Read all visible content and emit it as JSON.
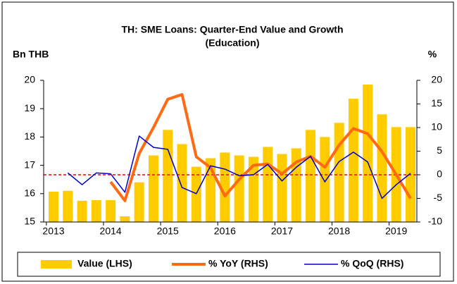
{
  "chart_data": {
    "type": "bar_line",
    "title": [
      "TH: SME Loans: Quarter-End Value and Growth",
      "(Education)"
    ],
    "y_label": "Bn THB",
    "y2_label": "%",
    "categories": [
      "2013",
      null,
      null,
      null,
      "2014",
      null,
      null,
      null,
      "2015",
      null,
      null,
      null,
      "2016",
      null,
      null,
      null,
      "2017",
      null,
      null,
      null,
      "2018",
      null,
      null,
      null,
      "2019",
      null
    ],
    "series": [
      {
        "name": "Value (LHS)",
        "kind": "bar",
        "color": "#ffcc00",
        "values": [
          16.07,
          16.1,
          15.75,
          15.77,
          15.77,
          15.2,
          16.4,
          17.35,
          18.25,
          17.75,
          16.95,
          17.25,
          17.45,
          17.35,
          17.3,
          17.65,
          17.4,
          17.6,
          18.25,
          18.0,
          18.5,
          19.35,
          19.85,
          18.8,
          18.35,
          18.35
        ]
      },
      {
        "name": "% YoY (RHS)",
        "kind": "line",
        "axis": "y2",
        "color": "#ff6a13",
        "width": 4,
        "values": [
          null,
          null,
          null,
          null,
          -1.5,
          -5.5,
          4.5,
          10,
          16,
          17,
          3.8,
          1.5,
          -4.5,
          -1,
          2,
          2.3,
          0.2,
          2.7,
          3.9,
          1.6,
          6.3,
          9.8,
          8.7,
          4.9,
          0,
          -5
        ]
      },
      {
        "name": "% QoQ (RHS)",
        "kind": "line",
        "axis": "y2",
        "color": "#0000cc",
        "width": 1.5,
        "values": [
          null,
          0.4,
          -2.1,
          0.4,
          0.2,
          -3.7,
          8.2,
          5.8,
          5.4,
          -2.7,
          -4,
          1.9,
          1.2,
          -0.2,
          0,
          2.2,
          -1.3,
          1.6,
          3.9,
          -1.5,
          2.8,
          4.8,
          2.7,
          -5,
          -2.1,
          0.3
        ]
      }
    ],
    "ylim": [
      15,
      20
    ],
    "yticks": [
      15,
      16,
      17,
      18,
      19,
      20
    ],
    "y2lim": [
      -10,
      20
    ],
    "y2ticks": [
      -10,
      -5,
      0,
      5,
      10,
      15,
      20
    ],
    "reference_line": {
      "axis": "y2",
      "value": 0,
      "color": "#ff0000"
    },
    "legend": "bottom"
  }
}
